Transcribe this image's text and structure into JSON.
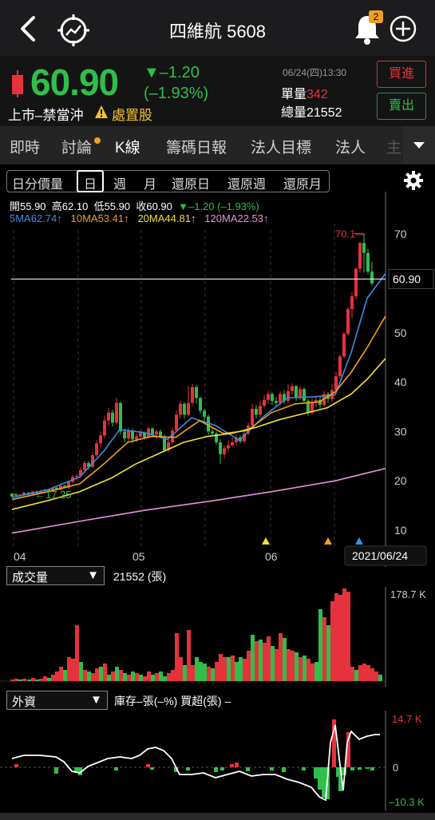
{
  "header": {
    "title": "四維航 5608",
    "badge": "2"
  },
  "quote": {
    "price": "60.90",
    "change": "▼–1.20",
    "change_pct": "(–1.93%)",
    "market": "上市–禁當沖",
    "disposition": "處置股",
    "datetime": "06/24(四)13:30",
    "unit_vol_label": "單量",
    "unit_vol": "342",
    "total_vol": "總量21552",
    "buy_label": "買進",
    "sell_label": "賣出",
    "colors": {
      "up": "#e6323c",
      "down": "#2fbf4a",
      "warn": "#f2c230"
    }
  },
  "tabs": [
    "即時",
    "討論",
    "K線",
    "籌碼日報",
    "法人目標",
    "法人",
    "主"
  ],
  "period_tabs": [
    "日分價量",
    "日",
    "週",
    "月",
    "還原日",
    "還原週",
    "還原月"
  ],
  "ohlc": {
    "open": "開55.90",
    "high": "高62.10",
    "low": "低55.90",
    "close": "收60.90",
    "chg": "▼–1.20 (–1.93%)"
  },
  "ma": {
    "ma5": "5MA62.74↑",
    "ma10": "10MA53.41↑",
    "ma20": "20MA44.81↑",
    "ma120": "120MA22.53↑"
  },
  "chart_data": {
    "type": "candlestick",
    "y_ticks": [
      "70",
      "60.90",
      "50",
      "40",
      "30",
      "20",
      "10"
    ],
    "x_ticks": [
      "04",
      "05",
      "06"
    ],
    "date_label": "2021/06/24",
    "max_label": "70.1",
    "min_label": "17.25",
    "current_price": 60.9,
    "volume": {
      "label": "成交量",
      "value": "21552 (張)",
      "max_label": "178.7 K"
    },
    "foreign": {
      "label": "外資",
      "info": "庫存–張(–%)  買超(張) –",
      "max_label": "14.7 K",
      "zero_label": "0",
      "min_label": "–10.3 K"
    }
  }
}
